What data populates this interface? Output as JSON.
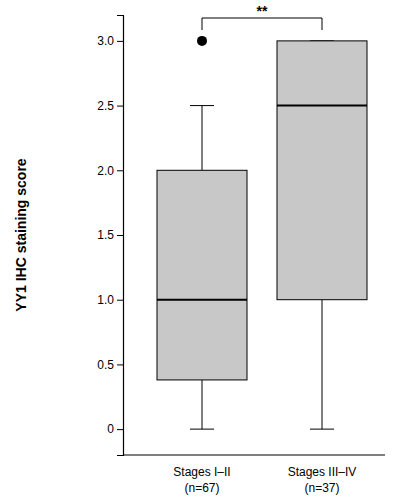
{
  "chart_data": {
    "type": "box",
    "y_label": "YY1 IHC staining score",
    "categories": [
      "Stages I–II",
      "Stages III–IV"
    ],
    "category_notes": [
      "(n=67)",
      "(n=37)"
    ],
    "boxes": [
      {
        "whisker_low": 0,
        "q1": 0.38,
        "median": 1.0,
        "q3": 2.0,
        "whisker_high": 2.5,
        "outliers": [
          3.0
        ]
      },
      {
        "whisker_low": 0,
        "q1": 1.0,
        "median": 2.5,
        "q3": 3.0,
        "whisker_high": 3.0,
        "outliers": []
      }
    ],
    "color": "#c8c8c8",
    "ylim": [
      -0.2,
      3.2
    ],
    "yticks": [
      0,
      0.5,
      {
        "value": 1,
        "label": "1.0"
      },
      1.5,
      {
        "value": 2,
        "label": "2.0"
      },
      2.5,
      {
        "value": 3,
        "label": "3.0"
      }
    ],
    "annotations": [
      {
        "text": "**",
        "from": 0,
        "to": 1
      }
    ]
  }
}
